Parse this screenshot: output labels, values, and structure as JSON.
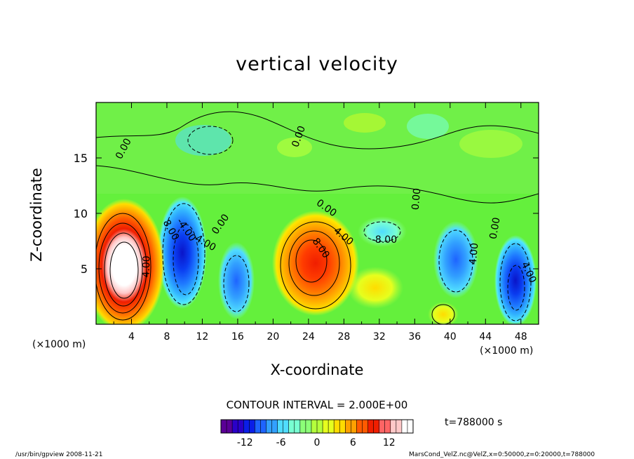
{
  "chart_data": {
    "type": "heatmap",
    "title": "vertical velocity",
    "xlabel": "X-coordinate",
    "ylabel": "Z-coordinate",
    "x_unit_left": "(×1000 m)",
    "x_unit_right": "(×1000 m)",
    "xlim": [
      0,
      50
    ],
    "ylim": [
      0,
      20
    ],
    "x_ticks": [
      4,
      8,
      12,
      16,
      20,
      24,
      28,
      32,
      36,
      40,
      44,
      48
    ],
    "y_ticks": [
      5,
      10,
      15
    ],
    "contour_interval_text": "CONTOUR INTERVAL = 2.000E+00",
    "time_text": "t=788000 s",
    "colorbar": {
      "range": [
        -16,
        16
      ],
      "ticks": [
        -12,
        -6,
        0,
        6,
        12
      ],
      "colors": [
        "#5a0096",
        "#2a00c8",
        "#0a1ee8",
        "#1e64ff",
        "#32a0ff",
        "#50dcff",
        "#78ffd2",
        "#8cff78",
        "#b4ff3c",
        "#e6ff1e",
        "#ffdc00",
        "#ffa000",
        "#ff5a00",
        "#f01e00",
        "#ff6464",
        "#ffc8c8",
        "#ffffff"
      ]
    },
    "contour_labels": [
      "0.00",
      "0.00",
      "0.00",
      "0.00",
      "0.00",
      "0.00",
      "4.00",
      "8.00",
      "4.00",
      "4.00",
      "4.00",
      "-4.00",
      "8.00",
      "4.00",
      "-8.00"
    ],
    "features": [
      {
        "kind": "updraft",
        "x": 3.5,
        "z": 5.2,
        "peak": 18
      },
      {
        "kind": "updraft",
        "x": 23.5,
        "z": 6.0,
        "peak": 12
      },
      {
        "kind": "updraft",
        "x": 39.5,
        "z": 1.0,
        "peak": 6
      },
      {
        "kind": "downdraft",
        "x": 11.0,
        "z": 5.0,
        "peak": -12
      },
      {
        "kind": "downdraft",
        "x": 15.8,
        "z": 4.0,
        "peak": -7
      },
      {
        "kind": "downdraft",
        "x": 40.5,
        "z": 6.0,
        "peak": -7
      },
      {
        "kind": "downdraft",
        "x": 47.5,
        "z": 3.5,
        "peak": -10
      },
      {
        "kind": "downdraft",
        "x": 32.0,
        "z": 9.0,
        "peak": -4
      }
    ]
  },
  "footer": {
    "left": "/usr/bin/gpview  2008-11-21",
    "right": "MarsCond_VelZ.nc@VelZ,x=0:50000,z=0:20000,t=788000"
  }
}
